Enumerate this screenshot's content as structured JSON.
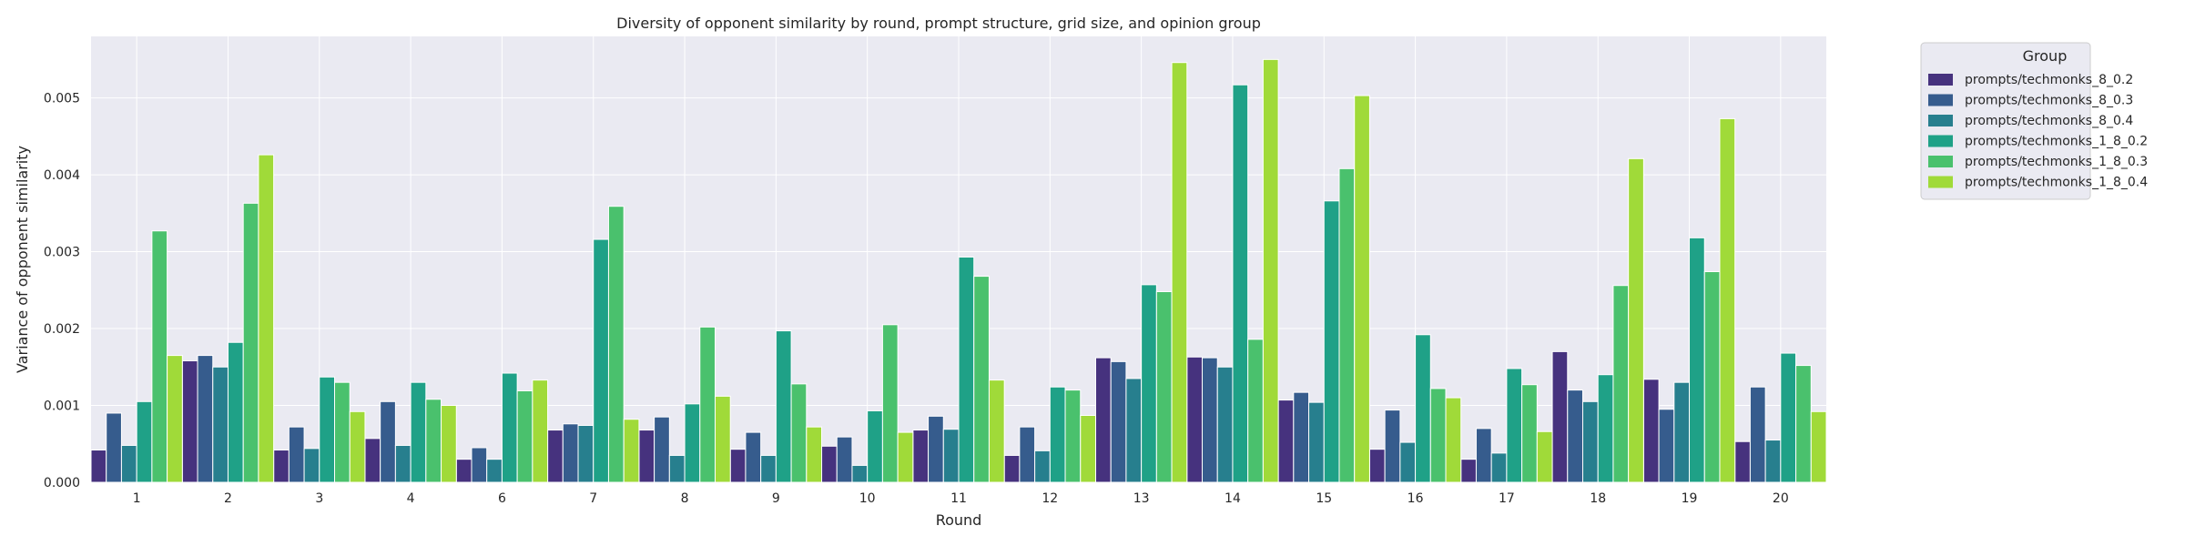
{
  "chart_data": {
    "type": "bar",
    "title": "Diversity of opponent similarity by round, prompt structure, grid size, and opinion group",
    "xlabel": "Round",
    "ylabel": "Variance of opponent similarity",
    "ylim": [
      0,
      0.0058
    ],
    "yticks": [
      "0.000",
      "0.001",
      "0.002",
      "0.003",
      "0.004",
      "0.005"
    ],
    "grid": true,
    "legend_title": "Group",
    "legend_position": "outside-right",
    "categories": [
      "1",
      "2",
      "3",
      "4",
      "6",
      "7",
      "8",
      "9",
      "10",
      "11",
      "12",
      "13",
      "14",
      "15",
      "16",
      "17",
      "18",
      "19",
      "20"
    ],
    "series": [
      {
        "name": "prompts/techmonks_8_0.2",
        "color": "#46327e",
        "values": [
          0.00042,
          0.00158,
          0.00042,
          0.00057,
          0.0003,
          0.00068,
          0.00068,
          0.00043,
          0.00047,
          0.00068,
          0.00035,
          0.00162,
          0.00163,
          0.00107,
          0.00043,
          0.0003,
          0.0017,
          0.00134,
          0.00053
        ]
      },
      {
        "name": "prompts/techmonks_8_0.3",
        "color": "#365c8d",
        "values": [
          0.0009,
          0.00165,
          0.00072,
          0.00105,
          0.00045,
          0.00076,
          0.00085,
          0.00065,
          0.00059,
          0.00086,
          0.00072,
          0.00157,
          0.00162,
          0.00117,
          0.00094,
          0.0007,
          0.0012,
          0.00095,
          0.00124
        ]
      },
      {
        "name": "prompts/techmonks_8_0.4",
        "color": "#277f8e",
        "values": [
          0.00048,
          0.0015,
          0.00044,
          0.00048,
          0.0003,
          0.00074,
          0.00035,
          0.00035,
          0.00022,
          0.00069,
          0.00041,
          0.00135,
          0.0015,
          0.00104,
          0.00052,
          0.00038,
          0.00105,
          0.0013,
          0.00055
        ]
      },
      {
        "name": "prompts/techmonks_1_8_0.2",
        "color": "#1fa187",
        "values": [
          0.00105,
          0.00182,
          0.00137,
          0.0013,
          0.00142,
          0.00316,
          0.00102,
          0.00197,
          0.00093,
          0.00293,
          0.00124,
          0.00257,
          0.00517,
          0.00366,
          0.00192,
          0.00148,
          0.0014,
          0.00318,
          0.00168
        ]
      },
      {
        "name": "prompts/techmonks_1_8_0.3",
        "color": "#4ac16d",
        "values": [
          0.00327,
          0.00363,
          0.0013,
          0.00108,
          0.00119,
          0.00359,
          0.00202,
          0.00128,
          0.00205,
          0.00268,
          0.0012,
          0.00248,
          0.00186,
          0.00408,
          0.00122,
          0.00127,
          0.00256,
          0.00274,
          0.00152
        ]
      },
      {
        "name": "prompts/techmonks_1_8_0.4",
        "color": "#a0da39",
        "values": [
          0.00165,
          0.00426,
          0.00092,
          0.001,
          0.00133,
          0.00082,
          0.00112,
          0.00072,
          0.00065,
          0.00133,
          0.00087,
          0.00546,
          0.0055,
          0.00503,
          0.0011,
          0.00066,
          0.00421,
          0.00473,
          0.00092
        ]
      }
    ]
  }
}
